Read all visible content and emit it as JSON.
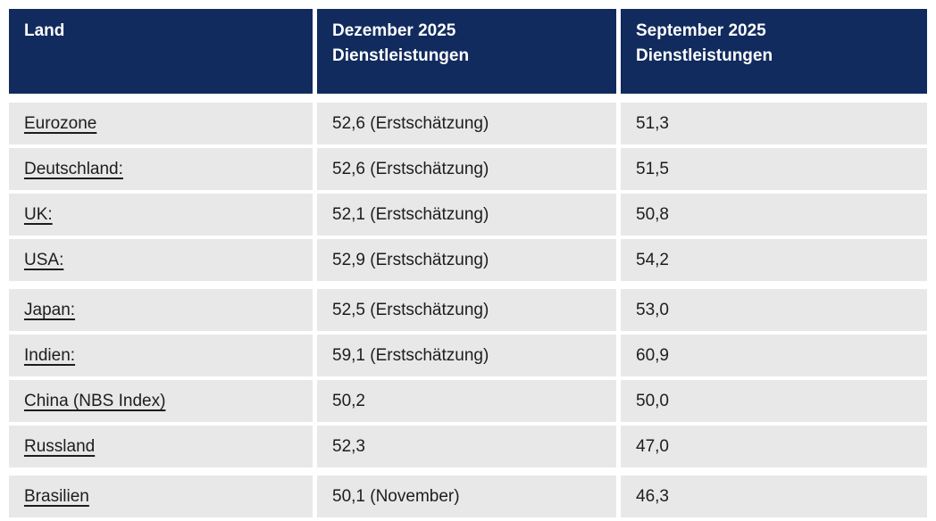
{
  "table": {
    "columns": {
      "land": "Land",
      "dezember": "Dezember 2025\nDienstleistungen",
      "september": "September 2025\nDienstleistungen"
    },
    "rows": [
      {
        "land": "Eurozone",
        "dez": "52,6 (Erstschätzung)",
        "sep": "51,3"
      },
      {
        "land": "Deutschland:",
        "dez": "52,6 (Erstschätzung)",
        "sep": "51,5"
      },
      {
        "land": "UK:",
        "dez": "52,1 (Erstschätzung)",
        "sep": "50,8"
      },
      {
        "land": "USA:",
        "dez": "52,9 (Erstschätzung)",
        "sep": "54,2"
      },
      {
        "land": "Japan:",
        "dez": "52,5 (Erstschätzung)",
        "sep": "53,0"
      },
      {
        "land": "Indien:",
        "dez": "59,1 (Erstschätzung)",
        "sep": "60,9"
      },
      {
        "land": "China (NBS Index)",
        "dez": "50,2",
        "sep": "50,0"
      },
      {
        "land": "Russland",
        "dez": "52,3",
        "sep": "47,0"
      },
      {
        "land": "Brasilien",
        "dez": "50,1 (November)",
        "sep": "46,3"
      }
    ],
    "colors": {
      "header_bg": "#112b5e",
      "header_text": "#ffffff",
      "row_bg": "#e8e8e8",
      "body_text": "#1d1d1d"
    }
  },
  "chart_data": {
    "type": "table",
    "title": "",
    "columns": [
      "Land",
      "Dezember 2025 Dienstleistungen",
      "September 2025 Dienstleistungen"
    ],
    "rows": [
      [
        "Eurozone",
        "52,6 (Erstschätzung)",
        "51,3"
      ],
      [
        "Deutschland:",
        "52,6 (Erstschätzung)",
        "51,5"
      ],
      [
        "UK:",
        "52,1 (Erstschätzung)",
        "50,8"
      ],
      [
        "USA:",
        "52,9 (Erstschätzung)",
        "54,2"
      ],
      [
        "Japan:",
        "52,5 (Erstschätzung)",
        "53,0"
      ],
      [
        "Indien:",
        "59,1 (Erstschätzung)",
        "60,9"
      ],
      [
        "China (NBS Index)",
        "50,2",
        "50,0"
      ],
      [
        "Russland",
        "52,3",
        "47,0"
      ],
      [
        "Brasilien",
        "50,1 (November)",
        "46,3"
      ]
    ],
    "values_dezember_2025": [
      52.6,
      52.6,
      52.1,
      52.9,
      52.5,
      59.1,
      50.2,
      52.3,
      50.1
    ],
    "values_september_2025": [
      51.3,
      51.5,
      50.8,
      54.2,
      53.0,
      60.9,
      50.0,
      47.0,
      46.3
    ]
  }
}
